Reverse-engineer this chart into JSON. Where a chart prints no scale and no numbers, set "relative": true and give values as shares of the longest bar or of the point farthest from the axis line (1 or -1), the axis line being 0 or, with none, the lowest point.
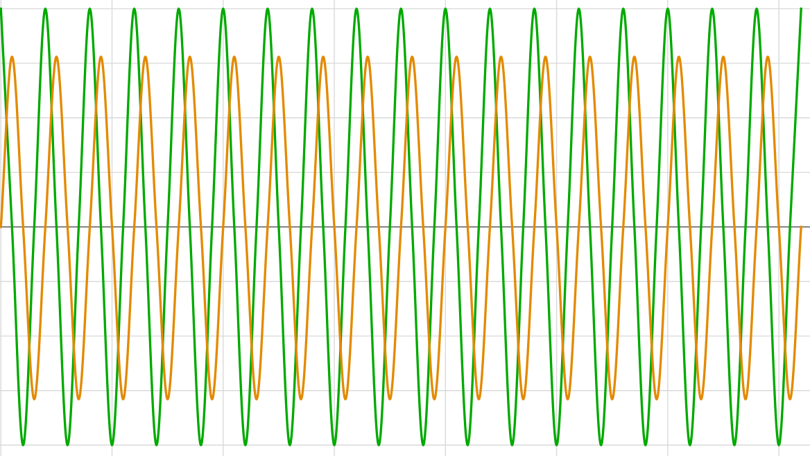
{
  "chart_data": {
    "type": "line",
    "relative": true,
    "grid": true,
    "legend": false,
    "categories": [
      null,
      null,
      null,
      null,
      null,
      null,
      null,
      null,
      null,
      null,
      null,
      null,
      null,
      null,
      null,
      null,
      null,
      null,
      null,
      null,
      null,
      null,
      null,
      null,
      null,
      null,
      null,
      null,
      null,
      null,
      null,
      null,
      null,
      null,
      null,
      null,
      null,
      null,
      null,
      null,
      null,
      null,
      null,
      null,
      null,
      null,
      null,
      null,
      null,
      null,
      null,
      null,
      null,
      null,
      null,
      null,
      null,
      null,
      null,
      null,
      null,
      null,
      null,
      null,
      null,
      null,
      null,
      null,
      null,
      null,
      null,
      null,
      null
    ],
    "series": [
      {
        "color": "#00aa00",
        "values": [
          1,
          0,
          -1,
          0,
          1,
          0,
          -1,
          0,
          1,
          0,
          -1,
          0,
          1,
          0,
          -1,
          0,
          1,
          0,
          -1,
          0,
          1,
          0,
          -1,
          0,
          1,
          0,
          -1,
          0,
          1,
          0,
          -1,
          0,
          1,
          0,
          -1,
          0,
          1,
          0,
          -1,
          0,
          1,
          0,
          -1,
          0,
          1,
          0,
          -1,
          0,
          1,
          0,
          -1,
          0,
          1,
          0,
          -1,
          0,
          1,
          0,
          -1,
          0,
          1,
          0,
          -1,
          0,
          1,
          0,
          -1,
          0,
          1,
          0,
          -1,
          0,
          1
        ]
      },
      {
        "color": "#e38a00",
        "values": [
          0,
          0.78,
          0,
          -0.79,
          0,
          0.78,
          0,
          -0.79,
          0,
          0.78,
          0,
          -0.79,
          0,
          0.78,
          0,
          -0.79,
          0,
          0.78,
          0,
          -0.79,
          0,
          0.78,
          0,
          -0.79,
          0,
          0.78,
          0,
          -0.79,
          0,
          0.78,
          0,
          -0.79,
          0,
          0.78,
          0,
          -0.79,
          0,
          0.78,
          0,
          -0.79,
          0,
          0.78,
          0,
          -0.79,
          0,
          0.78,
          0,
          -0.79,
          0,
          0.78,
          0,
          -0.79,
          0,
          0.78,
          0,
          -0.79,
          0,
          0.78,
          0,
          -0.79,
          0,
          0.78,
          0,
          -0.79,
          0,
          0.78,
          0,
          -0.79,
          0,
          0.78,
          0,
          -0.79,
          0
        ]
      }
    ]
  }
}
